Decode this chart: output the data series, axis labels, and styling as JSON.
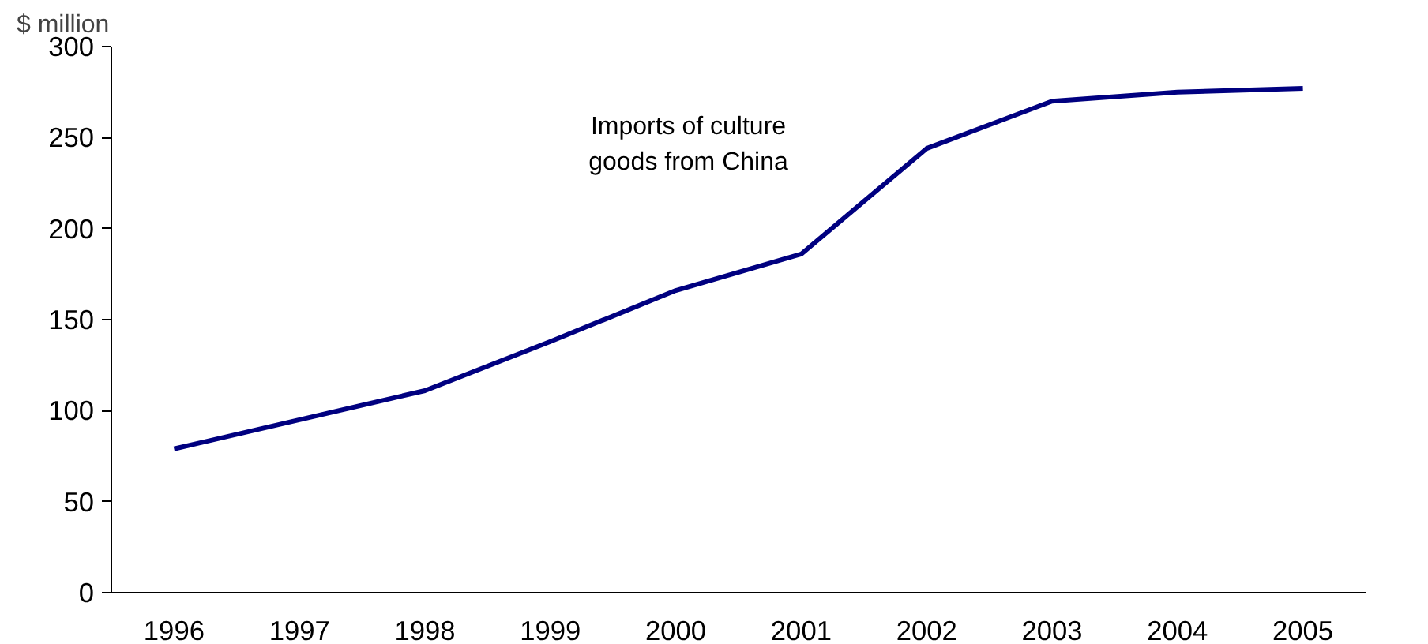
{
  "chart_data": {
    "type": "line",
    "ylabel": "$ million",
    "categories": [
      "1996",
      "1997",
      "1998",
      "1999",
      "2000",
      "2001",
      "2002",
      "2003",
      "2004",
      "2005"
    ],
    "series": [
      {
        "name": "Imports of culture\ngoods from China",
        "color": "#000080",
        "values": [
          79,
          95,
          111,
          138,
          166,
          186,
          244,
          270,
          275,
          277
        ]
      }
    ],
    "ylim": [
      0,
      300
    ],
    "yticks": [
      0,
      50,
      100,
      150,
      200,
      250,
      300
    ],
    "grid": false,
    "legend": false,
    "marker": "none",
    "line_style": "solid"
  }
}
